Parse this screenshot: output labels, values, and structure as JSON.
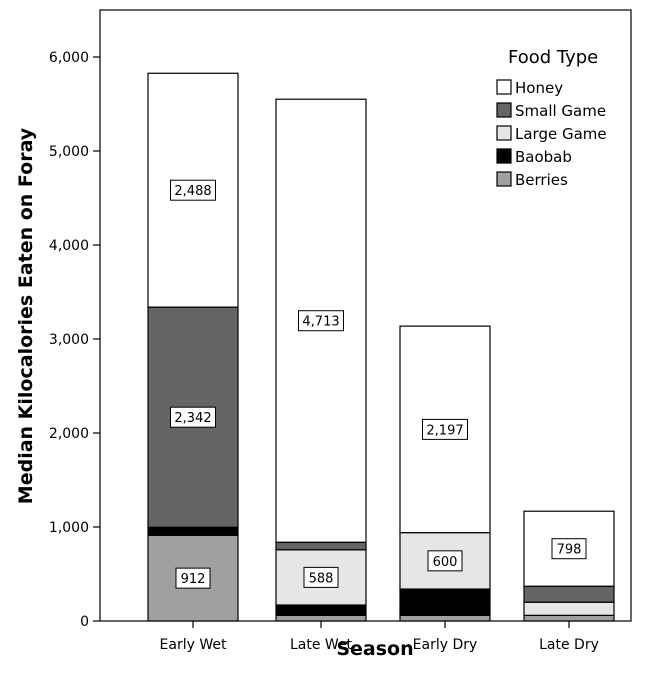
{
  "chart_data": {
    "type": "bar",
    "stacked": true,
    "title": "",
    "xlabel": "Season",
    "ylabel": "Median Kilocalories Eaten on Foray",
    "categories": [
      "Early Wet",
      "Late Wet",
      "Early Dry",
      "Late Dry"
    ],
    "ylim": [
      0,
      6500
    ],
    "yticks": [
      0,
      1000,
      2000,
      3000,
      4000,
      5000,
      6000
    ],
    "ytick_labels": [
      "0",
      "1,000",
      "2,000",
      "3,000",
      "4,000",
      "5,000",
      "6,000"
    ],
    "grid": false,
    "legend": {
      "title": "Food Type",
      "placement": "top-right"
    },
    "series": [
      {
        "name": "Berries",
        "color": "#a0a0a0",
        "values": [
          912,
          60,
          60,
          60
        ]
      },
      {
        "name": "Baobab",
        "color": "#000000",
        "values": [
          85,
          110,
          280,
          0
        ]
      },
      {
        "name": "Large Game",
        "color": "#e6e6e6",
        "values": [
          0,
          588,
          600,
          140
        ]
      },
      {
        "name": "Small Game",
        "color": "#656565",
        "values": [
          2342,
          80,
          0,
          170
        ]
      },
      {
        "name": "Honey",
        "color": "#ffffff",
        "values": [
          2488,
          4713,
          2197,
          798
        ]
      }
    ],
    "legend_order": [
      "Honey",
      "Small Game",
      "Large Game",
      "Baobab",
      "Berries"
    ],
    "data_labels": [
      {
        "category": "Early Wet",
        "series": "Honey",
        "text": "2,488"
      },
      {
        "category": "Early Wet",
        "series": "Small Game",
        "text": "2,342"
      },
      {
        "category": "Early Wet",
        "series": "Berries",
        "text": "912"
      },
      {
        "category": "Late Wet",
        "series": "Honey",
        "text": "4,713"
      },
      {
        "category": "Late Wet",
        "series": "Large Game",
        "text": "588"
      },
      {
        "category": "Early Dry",
        "series": "Honey",
        "text": "2,197"
      },
      {
        "category": "Early Dry",
        "series": "Large Game",
        "text": "600"
      },
      {
        "category": "Late Dry",
        "series": "Honey",
        "text": "798"
      }
    ]
  }
}
